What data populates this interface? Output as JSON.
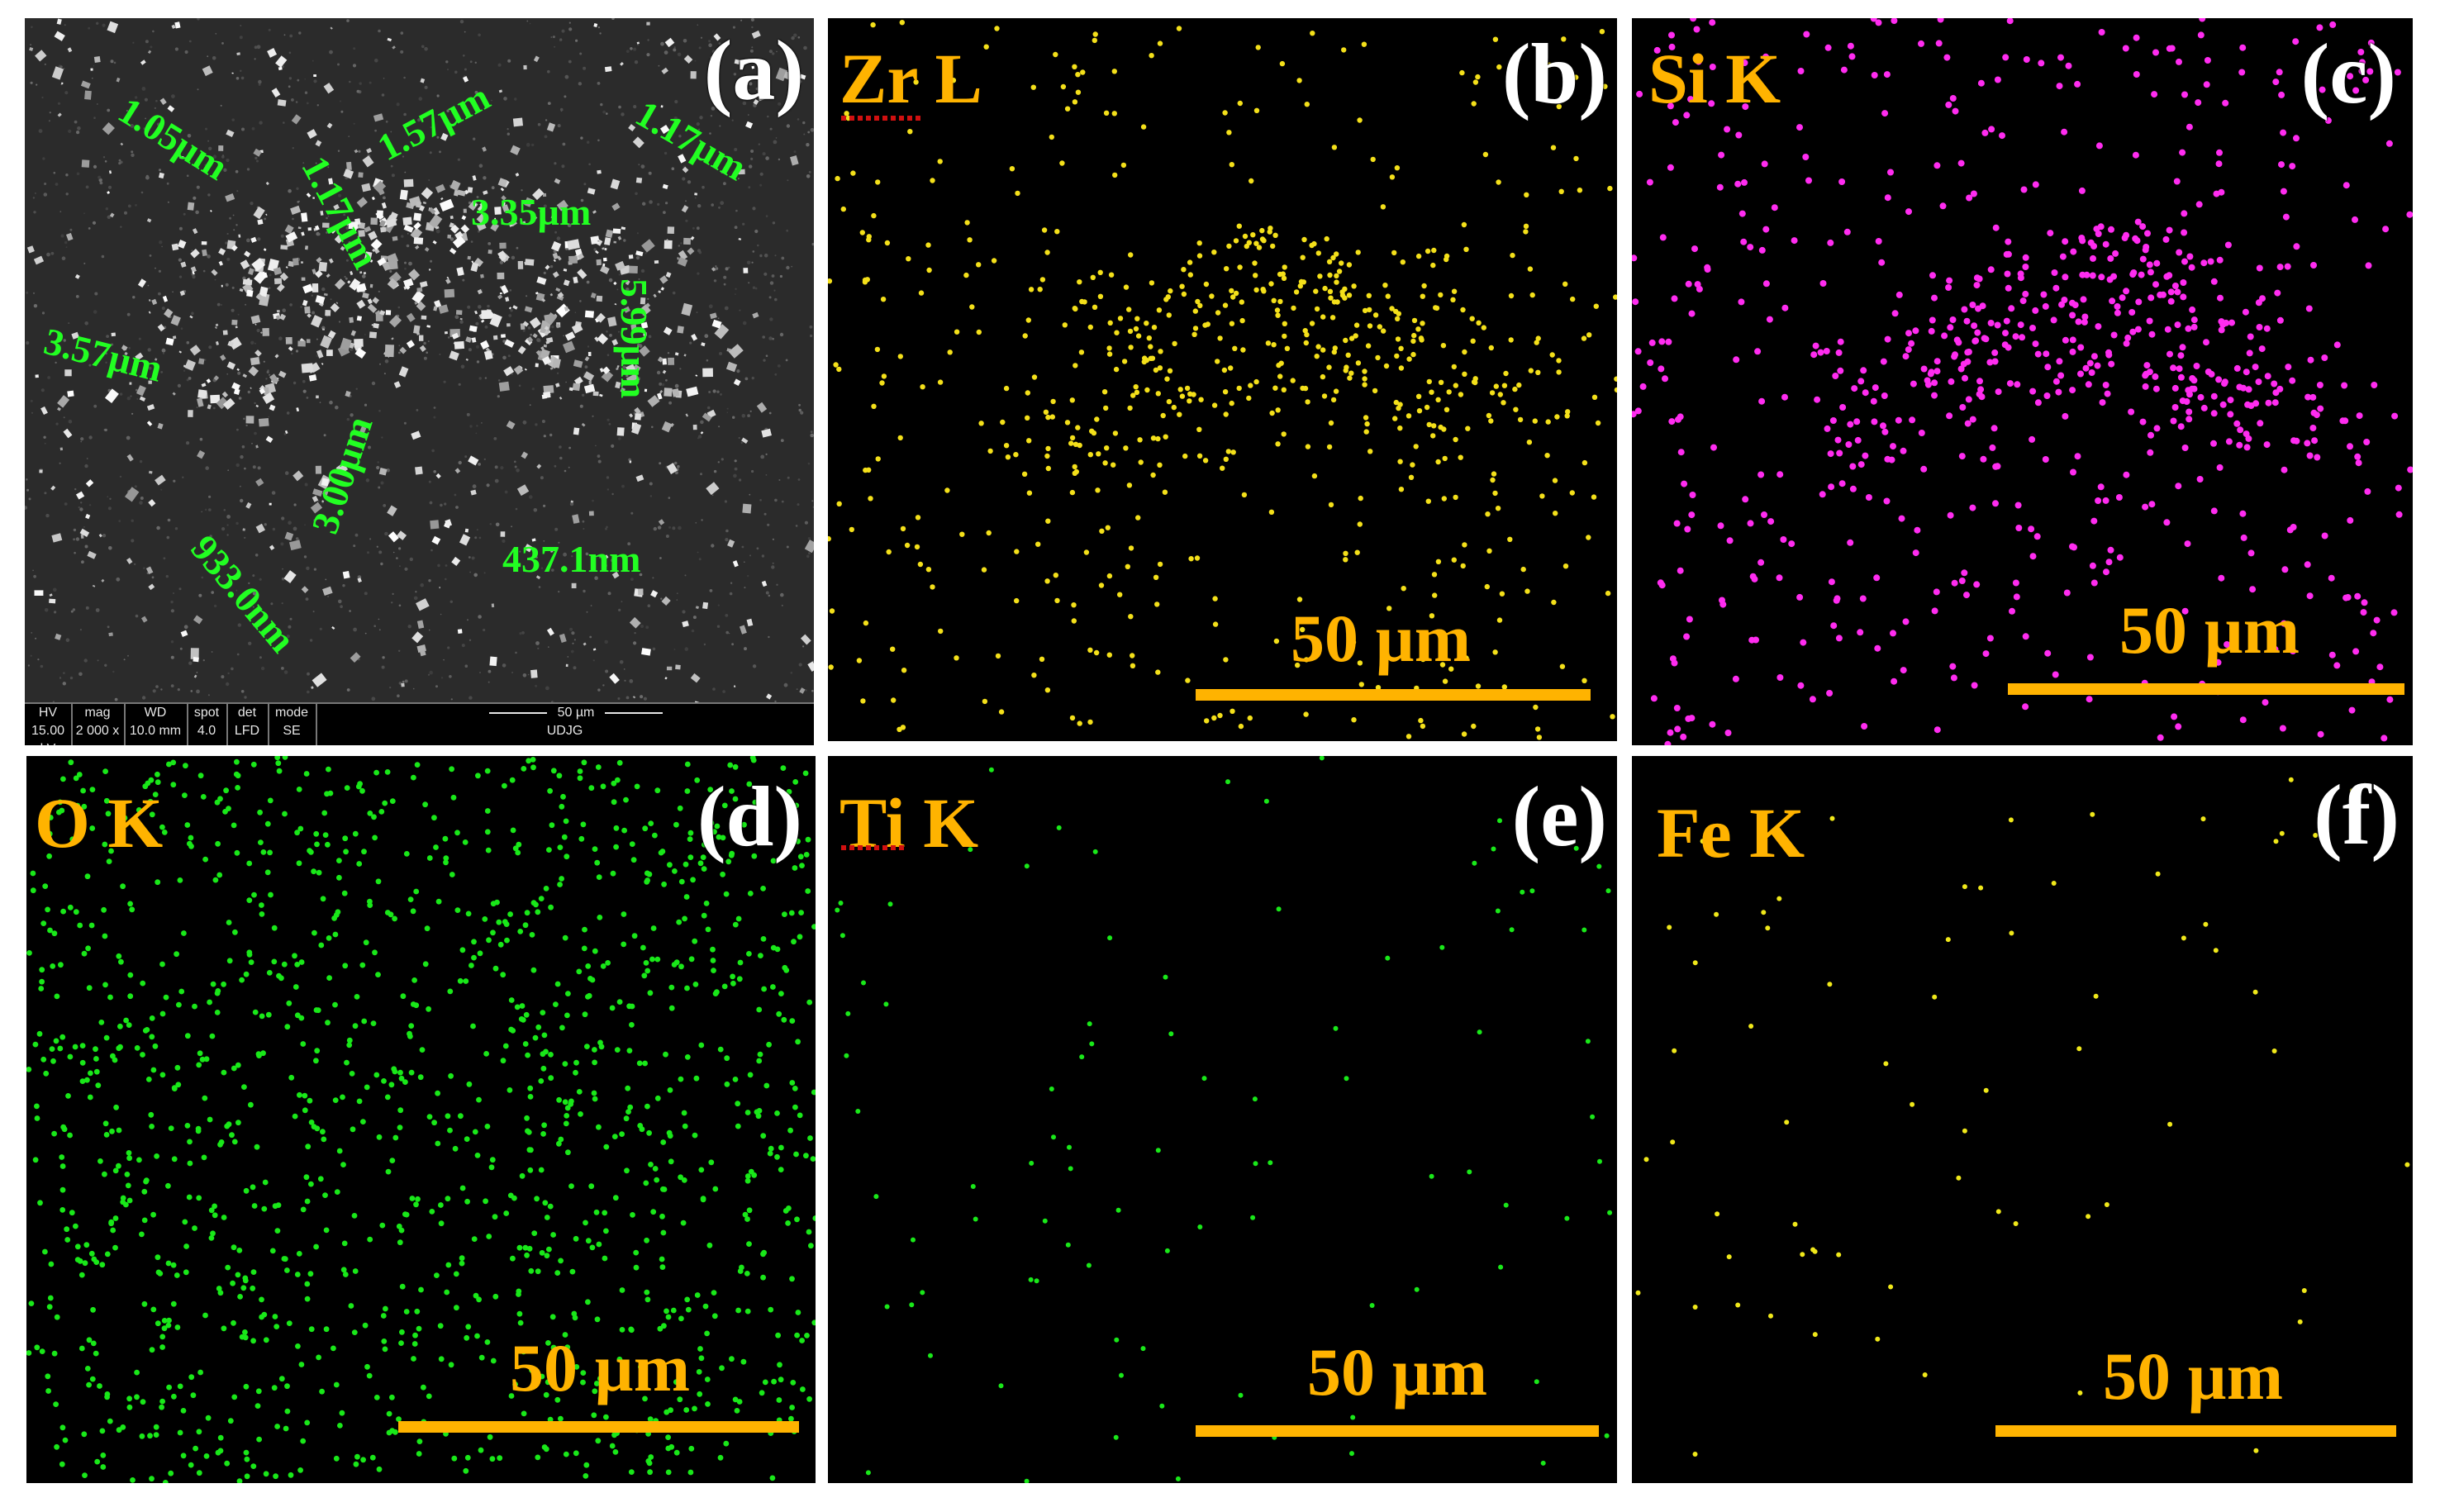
{
  "panels": {
    "a": {
      "letter": "(a)",
      "measurements": [
        "1.05µm",
        "1.57µm",
        "1.17µm",
        "1.17µm",
        "3.35µm",
        "3.57µm",
        "5.99µm",
        "3.00µm",
        "933.0nm",
        "437.1nm"
      ],
      "info_bar": {
        "cells": [
          {
            "label": "HV",
            "value": "15.00 kV"
          },
          {
            "label": "mag",
            "value": "2 000 x"
          },
          {
            "label": "WD",
            "value": "10.0 mm"
          },
          {
            "label": "spot",
            "value": "4.0"
          },
          {
            "label": "det",
            "value": "LFD"
          },
          {
            "label": "mode",
            "value": "SE"
          }
        ],
        "scale_label": "50 µm",
        "operator": "UDJG"
      }
    },
    "b": {
      "letter": "(b)",
      "element": "Zr L",
      "scale": "50 µm",
      "dot_color": "#f4e01a"
    },
    "c": {
      "letter": "(c)",
      "element": "Si K",
      "scale": "50 µm",
      "dot_color": "#ff2cf0"
    },
    "d": {
      "letter": "(d)",
      "element": "O K",
      "scale": "50 µm",
      "dot_color": "#19e819"
    },
    "e": {
      "letter": "(e)",
      "element": "Ti K",
      "scale": "50 µm",
      "dot_color": "#19e819"
    },
    "f": {
      "letter": "(f)",
      "element": "Fe K",
      "scale": "50 µm",
      "dot_color": "#f0e81a"
    }
  }
}
